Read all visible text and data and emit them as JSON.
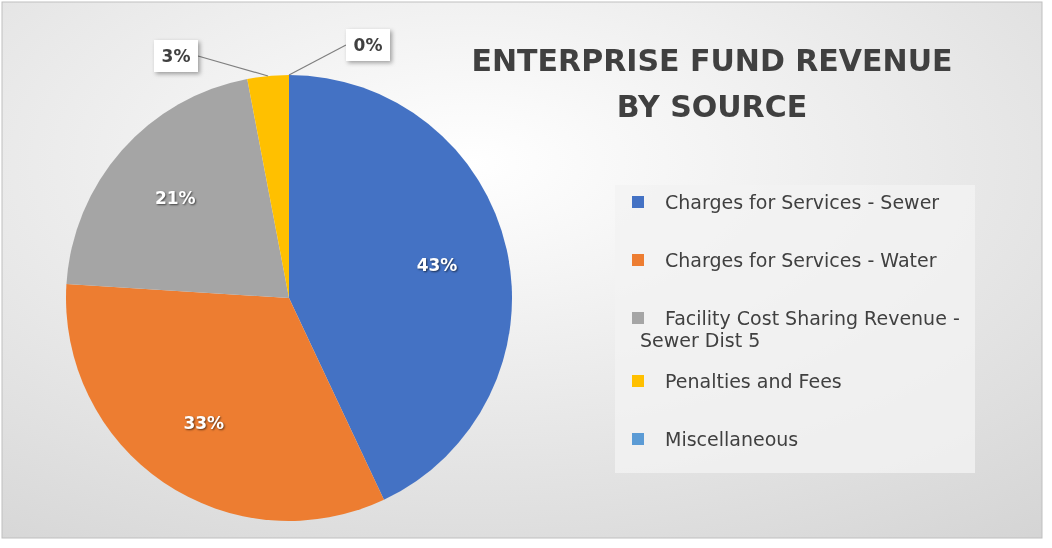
{
  "chart_data": {
    "type": "pie",
    "title": "ENTERPRISE FUND REVENUE BY SOURCE",
    "categories": [
      "Charges for Services - Sewer",
      "Charges for Services - Water",
      "Facility Cost Sharing Revenue - Sewer Dist 5",
      "Penalties and Fees",
      "Miscellaneous"
    ],
    "values": [
      43,
      33,
      21,
      3,
      0
    ],
    "colors": [
      "#4472c4",
      "#ed7d31",
      "#a5a5a5",
      "#ffc000",
      "#5b9bd5"
    ],
    "value_labels": [
      "43%",
      "33%",
      "21%",
      "3%",
      "0%"
    ],
    "legend": "right"
  }
}
